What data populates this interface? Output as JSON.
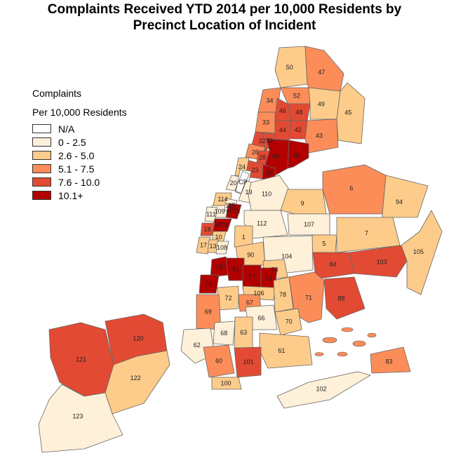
{
  "title": {
    "line1": "Complaints Received YTD 2014 per 10,000 Residents by",
    "line2": "Precinct Location of Incident"
  },
  "legend": {
    "title_line1": "Complaints",
    "title_line2": "Per 10,000 Residents",
    "items": [
      {
        "label": "N/A",
        "color": "#ffffff"
      },
      {
        "label": "0 - 2.5",
        "color": "#fef0d9"
      },
      {
        "label": "2.6 - 5.0",
        "color": "#fdcc8a"
      },
      {
        "label": "5.1 - 7.5",
        "color": "#fc8d59"
      },
      {
        "label": "7.6 - 10.0",
        "color": "#e34a33"
      },
      {
        "label": "10.1+",
        "color": "#b30000"
      }
    ]
  },
  "precincts": [
    {
      "label": "50",
      "cls": 2
    },
    {
      "label": "47",
      "cls": 3
    },
    {
      "label": "52",
      "cls": 3
    },
    {
      "label": "34",
      "cls": 3
    },
    {
      "label": "46",
      "cls": 4
    },
    {
      "label": "48",
      "cls": 4
    },
    {
      "label": "49",
      "cls": 2
    },
    {
      "label": "45",
      "cls": 2
    },
    {
      "label": "33",
      "cls": 3
    },
    {
      "label": "44",
      "cls": 4
    },
    {
      "label": "42",
      "cls": 4
    },
    {
      "label": "43",
      "cls": 3
    },
    {
      "label": "32",
      "cls": 4
    },
    {
      "label": "30",
      "cls": 4
    },
    {
      "label": "26",
      "cls": 3
    },
    {
      "label": "40",
      "cls": 5
    },
    {
      "label": "41",
      "cls": 5
    },
    {
      "label": "28",
      "cls": 4
    },
    {
      "label": "23",
      "cls": 4
    },
    {
      "label": "25",
      "cls": 5
    },
    {
      "label": "24",
      "cls": 2
    },
    {
      "label": "20",
      "cls": 1
    },
    {
      "label": "CP",
      "cls": 0
    },
    {
      "label": "19",
      "cls": 1
    },
    {
      "label": "114",
      "cls": 2
    },
    {
      "label": "109",
      "cls": 1
    },
    {
      "label": "115",
      "cls": 1
    },
    {
      "label": "111",
      "cls": 1
    },
    {
      "label": "MTN",
      "cls": 5
    },
    {
      "label": "MTS",
      "cls": 5
    },
    {
      "label": "18",
      "cls": 4
    },
    {
      "label": "10",
      "cls": 2
    },
    {
      "label": "17",
      "cls": 2
    },
    {
      "label": "13",
      "cls": 2
    },
    {
      "label": "108",
      "cls": 1
    },
    {
      "label": "110",
      "cls": 1
    },
    {
      "label": "6",
      "cls": 3
    },
    {
      "label": "9",
      "cls": 2
    },
    {
      "label": "94",
      "cls": 2
    },
    {
      "label": "112",
      "cls": 1
    },
    {
      "label": "107",
      "cls": 1
    },
    {
      "label": "1",
      "cls": 2
    },
    {
      "label": "5",
      "cls": 2
    },
    {
      "label": "7",
      "cls": 2
    },
    {
      "label": "90",
      "cls": 2
    },
    {
      "label": "104",
      "cls": 1
    },
    {
      "label": "103",
      "cls": 4
    },
    {
      "label": "105",
      "cls": 2
    },
    {
      "label": "84",
      "cls": 4
    },
    {
      "label": "88",
      "cls": 4
    },
    {
      "label": "83",
      "cls": 3
    },
    {
      "label": "102",
      "cls": 1
    },
    {
      "label": "79",
      "cls": 5
    },
    {
      "label": "81",
      "cls": 5
    },
    {
      "label": "76",
      "cls": 2
    },
    {
      "label": "77",
      "cls": 5
    },
    {
      "label": "73",
      "cls": 5
    },
    {
      "label": "75",
      "cls": 5
    },
    {
      "label": "106",
      "cls": 2
    },
    {
      "label": "78",
      "cls": 2
    },
    {
      "label": "71",
      "cls": 3
    },
    {
      "label": "72",
      "cls": 2
    },
    {
      "label": "67",
      "cls": 3
    },
    {
      "label": "69",
      "cls": 3
    },
    {
      "label": "66",
      "cls": 1
    },
    {
      "label": "70",
      "cls": 2
    },
    {
      "label": "68",
      "cls": 1
    },
    {
      "label": "63",
      "cls": 2
    },
    {
      "label": "62",
      "cls": 1
    },
    {
      "label": "61",
      "cls": 2
    },
    {
      "label": "60",
      "cls": 3
    },
    {
      "label": "101",
      "cls": 4
    },
    {
      "label": "100",
      "cls": 2
    },
    {
      "label": "121",
      "cls": 4
    },
    {
      "label": "120",
      "cls": 4
    },
    {
      "label": "122",
      "cls": 2
    },
    {
      "label": "123",
      "cls": 1
    }
  ]
}
